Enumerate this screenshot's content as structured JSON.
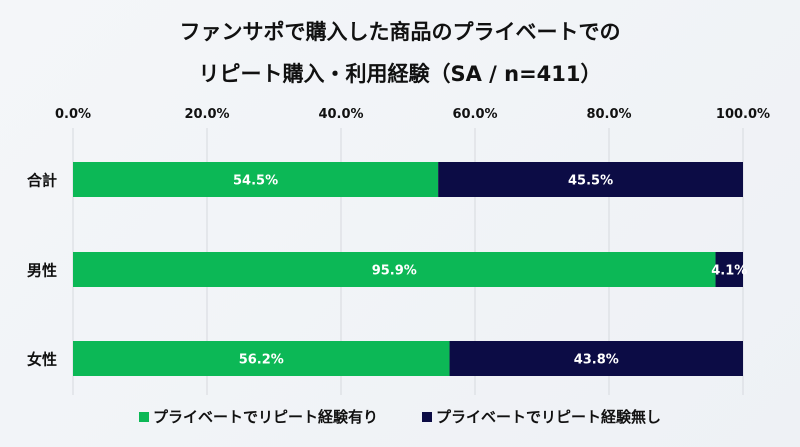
{
  "chart_data": {
    "type": "bar",
    "orientation": "horizontal",
    "stacked": true,
    "title": "ファンサポで購入した商品のプライベートでの",
    "subtitle": "リピート購入・利用経験（SA / n=411）",
    "categories": [
      "合計",
      "男性",
      "女性"
    ],
    "series": [
      {
        "name": "プライベートでリピート経験有り",
        "values": [
          54.5,
          95.9,
          56.2
        ],
        "labels": [
          "54.5%",
          "95.9%",
          "56.2%"
        ],
        "color": "#0cb856"
      },
      {
        "name": "プライベートでリピート経験無し",
        "values": [
          45.5,
          4.1,
          43.8
        ],
        "labels": [
          "45.5%",
          "4.1%",
          "43.8%"
        ],
        "color": "#0c0c45"
      }
    ],
    "xlim": [
      0,
      100
    ],
    "xticks": [
      "0.0%",
      "20.0%",
      "40.0%",
      "60.0%",
      "80.0%",
      "100.0%"
    ],
    "grid": true,
    "legend": "bottom"
  }
}
